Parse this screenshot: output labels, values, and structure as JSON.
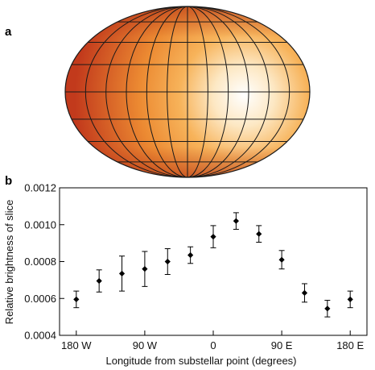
{
  "panels": {
    "map_label": "a",
    "chart_label": "b"
  },
  "map": {
    "colors": {
      "hot_center": "#ffffff",
      "warm": "#f7b35a",
      "mid": "#ec8a32",
      "cool": "#c23a1c",
      "outline": "#1a1a1a"
    }
  },
  "chart_data": {
    "type": "scatter",
    "title": "",
    "xlabel": "Longitude from substellar point (degrees)",
    "ylabel": "Relative brightness of slice",
    "xlim": [
      -202,
      202
    ],
    "ylim": [
      0.0004,
      0.0012
    ],
    "x_ticks": [
      {
        "value": -180,
        "label": "180 W"
      },
      {
        "value": -90,
        "label": "90 W"
      },
      {
        "value": 0,
        "label": "0"
      },
      {
        "value": 90,
        "label": "90 E"
      },
      {
        "value": 180,
        "label": "180 E"
      }
    ],
    "y_ticks": [
      {
        "value": 0.0004,
        "label": "0.0004"
      },
      {
        "value": 0.0006,
        "label": "0.0006"
      },
      {
        "value": 0.0008,
        "label": "0.0008"
      },
      {
        "value": 0.001,
        "label": "0.0010"
      },
      {
        "value": 0.0012,
        "label": "0.0012"
      }
    ],
    "grid": false,
    "marker": "diamond",
    "series": [
      {
        "points": [
          {
            "x": -180,
            "y": 0.000595,
            "err": 4.5e-05
          },
          {
            "x": -150,
            "y": 0.000695,
            "err": 6e-05
          },
          {
            "x": -120,
            "y": 0.000735,
            "err": 9.5e-05
          },
          {
            "x": -90,
            "y": 0.00076,
            "err": 9.5e-05
          },
          {
            "x": -60,
            "y": 0.0008,
            "err": 7e-05
          },
          {
            "x": -30,
            "y": 0.000835,
            "err": 4.5e-05
          },
          {
            "x": 0,
            "y": 0.000935,
            "err": 6e-05
          },
          {
            "x": 30,
            "y": 0.00102,
            "err": 4.5e-05
          },
          {
            "x": 60,
            "y": 0.00095,
            "err": 4.5e-05
          },
          {
            "x": 90,
            "y": 0.00081,
            "err": 5e-05
          },
          {
            "x": 120,
            "y": 0.00063,
            "err": 5e-05
          },
          {
            "x": 150,
            "y": 0.000545,
            "err": 4.5e-05
          },
          {
            "x": 180,
            "y": 0.000595,
            "err": 4.5e-05
          }
        ]
      }
    ]
  }
}
